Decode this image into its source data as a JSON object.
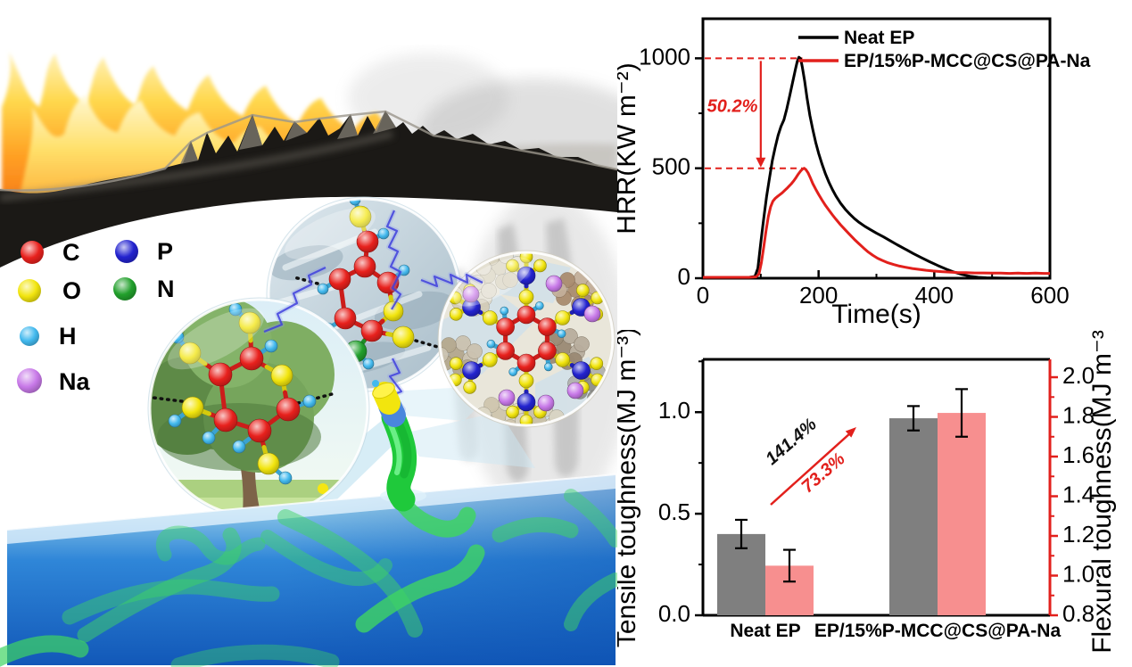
{
  "atom_legend": {
    "items": [
      {
        "symbol": "C",
        "color": "#e8211d"
      },
      {
        "symbol": "P",
        "color": "#2323cf"
      },
      {
        "symbol": "O",
        "color": "#f2e50e"
      },
      {
        "symbol": "N",
        "color": "#22a02c"
      },
      {
        "symbol": "H",
        "color": "#42b9ee"
      },
      {
        "symbol": "Na",
        "color": "#c879e8"
      }
    ]
  },
  "scene": {
    "elements": [
      "flames",
      "char-layer",
      "smoke-plumes",
      "cellulose-source-circle",
      "chitosan-source-circle",
      "phytic-acid-sodium-circle",
      "lightning-links",
      "coated-mcc-rod",
      "epoxy-matrix-water",
      "polymer-chains",
      "atom-legend"
    ],
    "colors": {
      "flame": "#ff9e22",
      "char": "#1b1916",
      "smoke": "#9b9b9b",
      "water": "#2f86d8",
      "polymer_chain": "#3fd463",
      "lightning": "#4040dd",
      "rod_cap": "#f2e50e",
      "rod_band": "#4a86dd",
      "rod_body": "#1fc93b"
    }
  },
  "chart_data": [
    {
      "type": "line",
      "title": "",
      "xlabel": "Time(s)",
      "ylabel": "HRR(KW m⁻²)",
      "xlim": [
        0,
        600
      ],
      "ylim": [
        0,
        1180
      ],
      "xticks": [
        0,
        200,
        400,
        600
      ],
      "xminor": [
        100,
        300,
        500
      ],
      "yticks": [
        0,
        500,
        1000
      ],
      "yminor": [
        250,
        750
      ],
      "grid": false,
      "legend_position": "top-right-inside",
      "annotation": {
        "label": "50.2%",
        "color": "#e2201c",
        "top_value": 1000,
        "bottom_value": 500,
        "arrow_time": 100,
        "dash_end_time": 172
      },
      "series": [
        {
          "name": "Neat EP",
          "color": "#000000",
          "points": [
            [
              0,
              3
            ],
            [
              20,
              3
            ],
            [
              40,
              3
            ],
            [
              60,
              3
            ],
            [
              80,
              4
            ],
            [
              90,
              8
            ],
            [
              95,
              45
            ],
            [
              100,
              160
            ],
            [
              105,
              270
            ],
            [
              110,
              370
            ],
            [
              115,
              455
            ],
            [
              120,
              535
            ],
            [
              125,
              595
            ],
            [
              130,
              650
            ],
            [
              135,
              690
            ],
            [
              140,
              720
            ],
            [
              145,
              770
            ],
            [
              150,
              830
            ],
            [
              155,
              890
            ],
            [
              160,
              950
            ],
            [
              163,
              985
            ],
            [
              166,
              1005
            ],
            [
              169,
              998
            ],
            [
              172,
              958
            ],
            [
              176,
              895
            ],
            [
              180,
              820
            ],
            [
              185,
              740
            ],
            [
              190,
              675
            ],
            [
              195,
              618
            ],
            [
              200,
              568
            ],
            [
              206,
              518
            ],
            [
              212,
              474
            ],
            [
              218,
              436
            ],
            [
              224,
              403
            ],
            [
              230,
              374
            ],
            [
              238,
              341
            ],
            [
              246,
              314
            ],
            [
              254,
              291
            ],
            [
              262,
              271
            ],
            [
              270,
              254
            ],
            [
              280,
              236
            ],
            [
              290,
              220
            ],
            [
              300,
              205
            ],
            [
              312,
              188
            ],
            [
              324,
              170
            ],
            [
              336,
              152
            ],
            [
              350,
              132
            ],
            [
              364,
              112
            ],
            [
              378,
              93
            ],
            [
              392,
              75
            ],
            [
              406,
              58
            ],
            [
              420,
              42
            ],
            [
              434,
              28
            ],
            [
              448,
              17
            ],
            [
              462,
              9
            ],
            [
              476,
              4
            ],
            [
              490,
              2
            ],
            [
              510,
              1
            ],
            [
              530,
              0
            ],
            [
              550,
              0
            ],
            [
              570,
              0
            ],
            [
              600,
              0
            ]
          ]
        },
        {
          "name": "EP/15%P-MCC@CS@PA-Na",
          "color": "#e2201c",
          "points": [
            [
              0,
              4
            ],
            [
              20,
              4
            ],
            [
              40,
              4
            ],
            [
              60,
              4
            ],
            [
              80,
              4
            ],
            [
              92,
              6
            ],
            [
              97,
              20
            ],
            [
              101,
              70
            ],
            [
              105,
              140
            ],
            [
              109,
              215
            ],
            [
              113,
              280
            ],
            [
              117,
              325
            ],
            [
              121,
              350
            ],
            [
              125,
              363
            ],
            [
              129,
              372
            ],
            [
              133,
              380
            ],
            [
              137,
              388
            ],
            [
              141,
              398
            ],
            [
              145,
              408
            ],
            [
              149,
              419
            ],
            [
              153,
              430
            ],
            [
              157,
              443
            ],
            [
              161,
              458
            ],
            [
              165,
              474
            ],
            [
              169,
              488
            ],
            [
              172,
              496
            ],
            [
              175,
              500
            ],
            [
              178,
              494
            ],
            [
              182,
              478
            ],
            [
              186,
              455
            ],
            [
              190,
              430
            ],
            [
              195,
              405
            ],
            [
              200,
              381
            ],
            [
              206,
              355
            ],
            [
              212,
              331
            ],
            [
              218,
              309
            ],
            [
              224,
              288
            ],
            [
              230,
              268
            ],
            [
              238,
              243
            ],
            [
              246,
              220
            ],
            [
              254,
              198
            ],
            [
              262,
              176
            ],
            [
              270,
              156
            ],
            [
              278,
              137
            ],
            [
              286,
              119
            ],
            [
              294,
              104
            ],
            [
              302,
              91
            ],
            [
              310,
              81
            ],
            [
              320,
              70
            ],
            [
              330,
              62
            ],
            [
              340,
              55
            ],
            [
              350,
              50
            ],
            [
              362,
              44
            ],
            [
              374,
              40
            ],
            [
              386,
              36
            ],
            [
              398,
              33
            ],
            [
              412,
              30
            ],
            [
              426,
              28
            ],
            [
              440,
              26
            ],
            [
              455,
              25
            ],
            [
              470,
              24
            ],
            [
              485,
              24
            ],
            [
              500,
              23
            ],
            [
              515,
              23
            ],
            [
              530,
              22
            ],
            [
              545,
              23
            ],
            [
              560,
              22
            ],
            [
              575,
              23
            ],
            [
              590,
              22
            ],
            [
              600,
              22
            ]
          ]
        }
      ]
    },
    {
      "type": "bar",
      "categories": [
        "Neat EP",
        "EP/15%P-MCC@CS@PA-Na"
      ],
      "left_axis": {
        "label": "Tensile toughness(MJ m⁻³)",
        "color": "#000000",
        "ticks": [
          0.0,
          0.5,
          1.0
        ],
        "minor": [
          0.25,
          0.75,
          1.25
        ],
        "range": [
          0,
          1.26
        ]
      },
      "right_axis": {
        "label": "Flexural toughness(MJ m⁻³)",
        "color": "#e2201c",
        "ticks": [
          0.8,
          1.0,
          1.2,
          1.4,
          1.6,
          1.8,
          2.0
        ],
        "minor": [
          0.9,
          1.1,
          1.3,
          1.5,
          1.7,
          1.9
        ],
        "range": [
          0.8,
          2.09
        ]
      },
      "series": [
        {
          "name": "Tensile toughness",
          "axis": "left",
          "color": "#7f7f7f",
          "values": [
            0.4,
            0.97
          ],
          "errors": [
            0.07,
            0.06
          ]
        },
        {
          "name": "Flexural toughness",
          "axis": "right",
          "color": "#f78f8f",
          "values": [
            1.05,
            1.82
          ],
          "errors": [
            0.08,
            0.12
          ]
        }
      ],
      "annotations": [
        {
          "label": "141.4%",
          "color": "#111111"
        },
        {
          "label": "73.3%",
          "color": "#e2201c"
        }
      ],
      "arrow_color": "#e2201c",
      "grid": false
    }
  ]
}
